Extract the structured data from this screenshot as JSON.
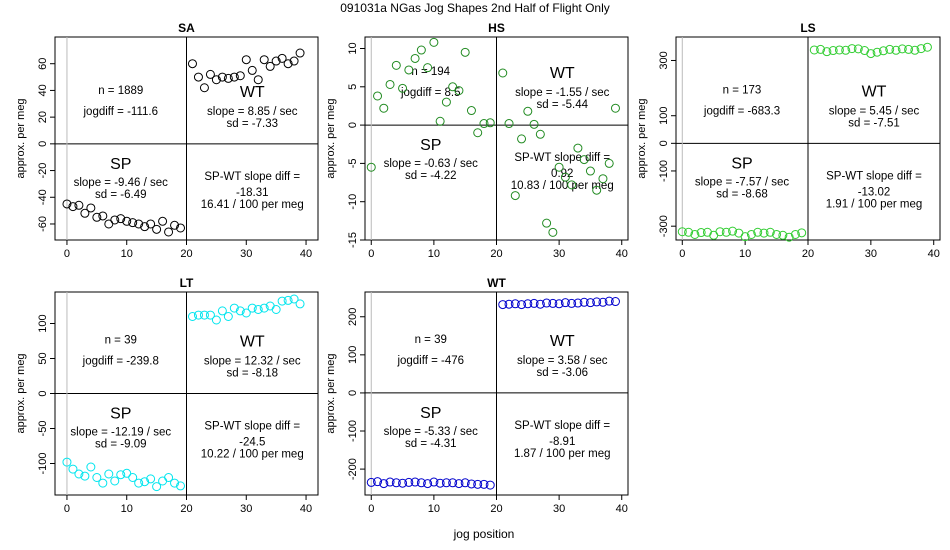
{
  "figure": {
    "title": "091031a   NGas Jog Shapes 2nd Half of Flight Only",
    "xlabel": "jog position"
  },
  "chart_data": [
    {
      "type": "scatter",
      "title": "SA",
      "ylabel": "approx. per meg",
      "color": "#000000",
      "xlim": [
        -2,
        42
      ],
      "ylim": [
        -72,
        80
      ],
      "xticks": [
        0,
        10,
        20,
        30,
        40
      ],
      "yticks": [
        -60,
        -40,
        -20,
        0,
        20,
        40,
        60
      ],
      "ytick_labels": [
        "-60",
        "-40",
        "-20",
        "0",
        "20",
        "40",
        "60"
      ],
      "x": [
        0,
        1,
        2,
        3,
        4,
        5,
        6,
        7,
        8,
        9,
        10,
        11,
        12,
        13,
        14,
        15,
        16,
        17,
        18,
        19,
        21,
        22,
        23,
        24,
        25,
        26,
        27,
        28,
        29,
        30,
        31,
        32,
        33,
        34,
        35,
        36,
        37,
        38,
        39
      ],
      "y": [
        -45,
        -47,
        -46,
        -52,
        -48,
        -55,
        -54,
        -60,
        -57,
        -56,
        -58,
        -59,
        -60,
        -62,
        -60,
        -64,
        -58,
        -66,
        -61,
        -63,
        60,
        50,
        42,
        52,
        48,
        50,
        49,
        50,
        51,
        63,
        55,
        48,
        63,
        58,
        62,
        64,
        60,
        62,
        68
      ],
      "annotations": {
        "n": "n = 1889",
        "jogdiff": "jogdiff = -111.6",
        "wt": "WT",
        "wt_slope": "slope = 8.85 / sec",
        "wt_sd": "sd = -7.33",
        "sp": "SP",
        "sp_slope": "slope = -9.46 / sec",
        "sp_sd": "sd = -6.49",
        "diff_label": "SP-WT slope diff =",
        "diff_value": "-18.31",
        "diff_per_meg": "16.41 / 100 per meg"
      }
    },
    {
      "type": "scatter",
      "title": "HS",
      "ylabel": "approx. per meg",
      "color": "#228B22",
      "xlim": [
        -1,
        41
      ],
      "ylim": [
        -15,
        11.5
      ],
      "xticks": [
        0,
        10,
        20,
        30,
        40
      ],
      "yticks": [
        -15,
        -10,
        -5,
        0,
        5,
        10
      ],
      "ytick_labels": [
        "-15",
        "-10",
        "-5",
        "0",
        "5",
        "10"
      ],
      "x": [
        0,
        1,
        2,
        3,
        4,
        5,
        6,
        7,
        8,
        9,
        10,
        11,
        12,
        13,
        14,
        15,
        16,
        17,
        18,
        19,
        21,
        22,
        23,
        24,
        25,
        26,
        27,
        28,
        29,
        30,
        31,
        32,
        33,
        34,
        35,
        36,
        37,
        38,
        39
      ],
      "y": [
        -5.5,
        3.8,
        2.2,
        5.3,
        7.8,
        4.8,
        7.2,
        8.7,
        9.8,
        7.5,
        10.8,
        0.5,
        3.0,
        5.0,
        4.5,
        9.5,
        1.9,
        -1.0,
        0.2,
        0.3,
        6.8,
        0.2,
        -9.2,
        -1.8,
        1.8,
        0.1,
        -1.2,
        -12.8,
        -14.0,
        -5.5,
        -6.8,
        -7.8,
        -3.0,
        -4.5,
        -6.0,
        -8.5,
        -7.0,
        -5.0,
        2.2
      ],
      "annotations": {
        "n": "n = 194",
        "jogdiff": "jogdiff = 8.5",
        "wt": "WT",
        "wt_slope": "slope = -1.55 / sec",
        "wt_sd": "sd = -5.44",
        "sp": "SP",
        "sp_slope": "slope = -0.63 / sec",
        "sp_sd": "sd = -4.22",
        "diff_label": "SP-WT slope diff =",
        "diff_value": "0.92",
        "diff_per_meg": "10.83 / 100 per meg"
      }
    },
    {
      "type": "scatter",
      "title": "LS",
      "ylabel": "approx. per meg",
      "color": "#32CD32",
      "xlim": [
        -1,
        41
      ],
      "ylim": [
        -350,
        385
      ],
      "xticks": [
        0,
        10,
        20,
        30,
        40
      ],
      "yticks": [
        -300,
        -100,
        0,
        100,
        300
      ],
      "ytick_labels": [
        "-300",
        "-100",
        "0",
        "100",
        "300"
      ],
      "x": [
        0,
        1,
        2,
        3,
        4,
        5,
        6,
        7,
        8,
        9,
        10,
        11,
        12,
        13,
        14,
        15,
        16,
        17,
        18,
        19,
        21,
        22,
        23,
        24,
        25,
        26,
        27,
        28,
        29,
        30,
        31,
        32,
        33,
        34,
        35,
        36,
        37,
        38,
        39
      ],
      "y": [
        -320,
        -322,
        -330,
        -323,
        -322,
        -333,
        -320,
        -322,
        -318,
        -325,
        -338,
        -330,
        -322,
        -325,
        -322,
        -330,
        -333,
        -340,
        -330,
        -324,
        338,
        340,
        332,
        336,
        338,
        337,
        343,
        342,
        336,
        325,
        330,
        335,
        340,
        337,
        342,
        340,
        337,
        343,
        348
      ],
      "annotations": {
        "n": "n = 173",
        "jogdiff": "jogdiff = -683.3",
        "wt": "WT",
        "wt_slope": "slope = 5.45 / sec",
        "wt_sd": "sd = -7.51",
        "sp": "SP",
        "sp_slope": "slope = -7.57 / sec",
        "sp_sd": "sd = -8.68",
        "diff_label": "SP-WT slope diff =",
        "diff_value": "-13.02",
        "diff_per_meg": "1.91 / 100 per meg"
      }
    },
    {
      "type": "scatter",
      "title": "LT",
      "ylabel": "approx. per meg",
      "color": "#00E5EE",
      "xlim": [
        -2,
        42
      ],
      "ylim": [
        -145,
        145
      ],
      "xticks": [
        0,
        10,
        20,
        30,
        40
      ],
      "yticks": [
        -100,
        -50,
        0,
        50,
        100
      ],
      "ytick_labels": [
        "-100",
        "-50",
        "0",
        "50",
        "100"
      ],
      "x": [
        0,
        1,
        2,
        3,
        4,
        5,
        6,
        7,
        8,
        9,
        10,
        11,
        12,
        13,
        14,
        15,
        16,
        17,
        18,
        19,
        21,
        22,
        23,
        24,
        25,
        26,
        27,
        28,
        29,
        30,
        31,
        32,
        33,
        34,
        35,
        36,
        37,
        38,
        39
      ],
      "y": [
        -98,
        -108,
        -115,
        -118,
        -105,
        -120,
        -128,
        -115,
        -125,
        -116,
        -114,
        -120,
        -128,
        -126,
        -122,
        -133,
        -125,
        -120,
        -128,
        -132,
        110,
        112,
        112,
        112,
        105,
        118,
        110,
        122,
        118,
        115,
        122,
        120,
        122,
        125,
        120,
        132,
        133,
        135,
        128
      ],
      "annotations": {
        "n": "n = 39",
        "jogdiff": "jogdiff = -239.8",
        "wt": "WT",
        "wt_slope": "slope = 12.32 / sec",
        "wt_sd": "sd = -8.18",
        "sp": "SP",
        "sp_slope": "slope = -12.19 / sec",
        "sp_sd": "sd = -9.09",
        "diff_label": "SP-WT slope diff =",
        "diff_value": "-24.5",
        "diff_per_meg": "10.22 / 100 per meg"
      }
    },
    {
      "type": "scatter",
      "title": "WT",
      "ylabel": "approx. per meg",
      "color": "#0000CD",
      "xlim": [
        -1,
        41
      ],
      "ylim": [
        -268,
        265
      ],
      "xticks": [
        0,
        10,
        20,
        30,
        40
      ],
      "yticks": [
        -200,
        -100,
        0,
        100,
        200
      ],
      "ytick_labels": [
        "-200",
        "-100",
        "0",
        "100",
        "200"
      ],
      "x": [
        0,
        1,
        2,
        3,
        4,
        5,
        6,
        7,
        8,
        9,
        10,
        11,
        12,
        13,
        14,
        15,
        16,
        17,
        18,
        19,
        21,
        22,
        23,
        24,
        25,
        26,
        27,
        28,
        29,
        30,
        31,
        32,
        33,
        34,
        35,
        36,
        37,
        38,
        39
      ],
      "y": [
        -235,
        -233,
        -238,
        -234,
        -236,
        -237,
        -235,
        -234,
        -236,
        -238,
        -234,
        -237,
        -236,
        -236,
        -238,
        -236,
        -239,
        -240,
        -240,
        -242,
        232,
        233,
        234,
        232,
        234,
        235,
        233,
        236,
        235,
        234,
        237,
        235,
        236,
        238,
        237,
        239,
        238,
        241,
        240
      ],
      "annotations": {
        "n": "n = 39",
        "jogdiff": "jogdiff = -476",
        "wt": "WT",
        "wt_slope": "slope = 3.58 / sec",
        "wt_sd": "sd = -3.06",
        "sp": "SP",
        "sp_slope": "slope = -5.33 / sec",
        "sp_sd": "sd = -4.31",
        "diff_label": "SP-WT slope diff =",
        "diff_value": "-8.91",
        "diff_per_meg": "1.87 / 100 per meg"
      }
    }
  ]
}
